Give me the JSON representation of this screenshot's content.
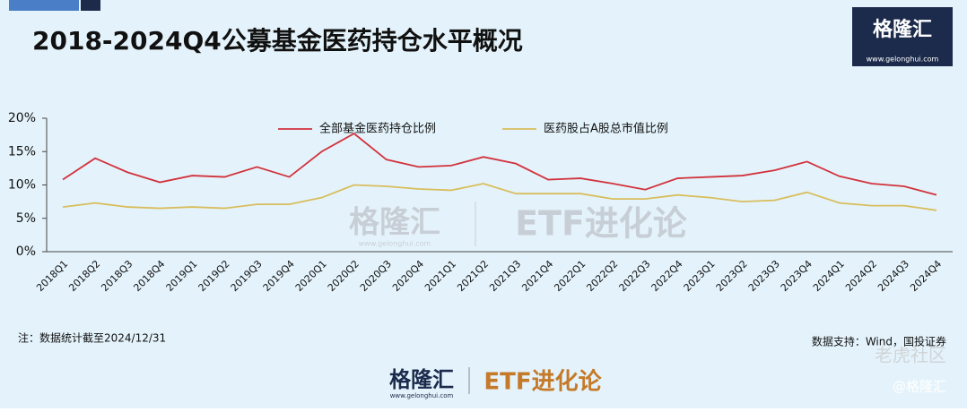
{
  "header": {
    "title": "2018-2024Q4公募基金医药持仓水平概况",
    "logo": "格隆汇",
    "logo_url": "www.gelonghui.com"
  },
  "chart_data": {
    "type": "line",
    "categories": [
      "2018Q1",
      "2018Q2",
      "2018Q3",
      "2018Q4",
      "2019Q1",
      "2019Q2",
      "2019Q3",
      "2019Q4",
      "2020Q1",
      "2020Q2",
      "2020Q3",
      "2020Q4",
      "2021Q1",
      "2021Q2",
      "2021Q3",
      "2021Q4",
      "2022Q1",
      "2022Q2",
      "2022Q3",
      "2022Q4",
      "2023Q1",
      "2023Q2",
      "2023Q3",
      "2023Q4",
      "2024Q1",
      "2024Q2",
      "2024Q3",
      "2024Q4"
    ],
    "series": [
      {
        "name": "全部基金医药持仓比例",
        "color": "#d2323c",
        "values": [
          10.8,
          14.0,
          11.9,
          10.4,
          11.4,
          11.2,
          12.7,
          11.2,
          15.0,
          17.7,
          13.8,
          12.7,
          12.9,
          14.2,
          13.2,
          10.8,
          11.0,
          10.2,
          9.3,
          11.0,
          11.2,
          11.4,
          12.2,
          13.5,
          11.3,
          10.2,
          9.8,
          8.5
        ]
      },
      {
        "name": "医药股占A股总市值比例",
        "color": "#d8bd5c",
        "values": [
          6.7,
          7.3,
          6.7,
          6.5,
          6.7,
          6.5,
          7.1,
          7.1,
          8.1,
          10.0,
          9.8,
          9.4,
          9.2,
          10.2,
          8.7,
          8.7,
          8.7,
          7.9,
          7.9,
          8.5,
          8.1,
          7.5,
          7.7,
          8.9,
          7.3,
          6.9,
          6.9,
          6.2
        ]
      }
    ],
    "ylim": [
      0,
      20
    ],
    "yticks": [
      {
        "value": 0,
        "label": "0%"
      },
      {
        "value": 5,
        "label": "5%"
      },
      {
        "value": 10,
        "label": "10%"
      },
      {
        "value": 15,
        "label": "15%"
      },
      {
        "value": 20,
        "label": "20%"
      }
    ],
    "legend": "top"
  },
  "watermark": {
    "brand": "格隆汇",
    "url": "www.gelonghui.com",
    "column": "ETF进化论",
    "community": "老虎社区",
    "handle": "@格隆汇"
  },
  "footer": {
    "note": "注：数据统计截至2024/12/31",
    "source": "数据支持：Wind，国投证券"
  }
}
